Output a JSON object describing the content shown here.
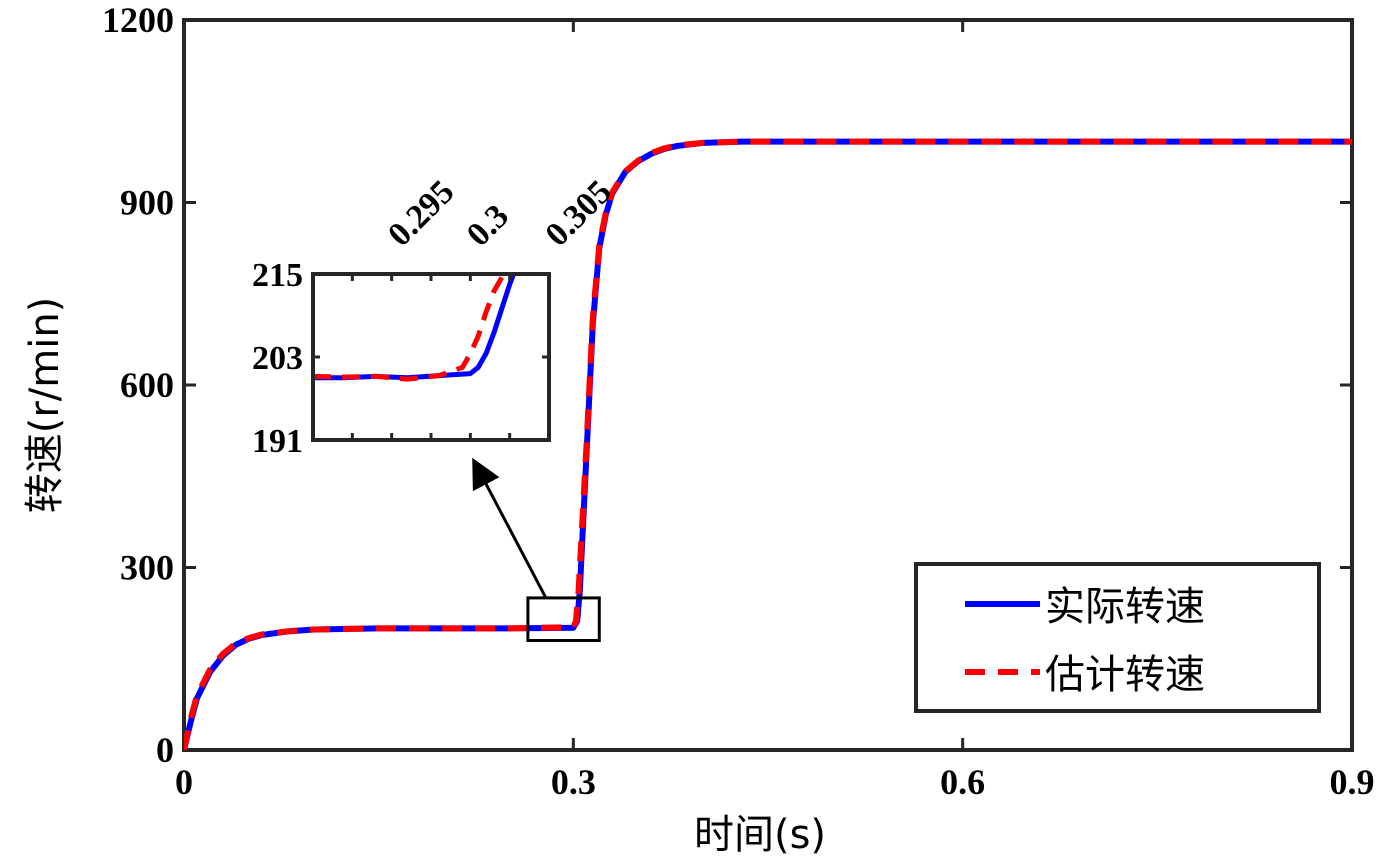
{
  "chart_data": {
    "type": "line",
    "xlabel": "时间(s)",
    "ylabel": "转速(r/min)",
    "xlim": [
      0,
      0.9
    ],
    "ylim": [
      0,
      1200
    ],
    "xticks": [
      0,
      0.3,
      0.6,
      0.9
    ],
    "xtick_labels": [
      "0",
      "0.3",
      "0.6",
      "0.9"
    ],
    "yticks": [
      0,
      300,
      600,
      900,
      1200
    ],
    "ytick_labels": [
      "0",
      "300",
      "600",
      "900",
      "1200"
    ],
    "grid": false,
    "legend_position": "bottom-right",
    "series": [
      {
        "name": "实际转速",
        "color": "#0000ff",
        "style": "solid",
        "x": [
          0,
          0.005,
          0.01,
          0.02,
          0.03,
          0.04,
          0.05,
          0.06,
          0.08,
          0.1,
          0.15,
          0.2,
          0.25,
          0.3,
          0.303,
          0.305,
          0.31,
          0.315,
          0.32,
          0.325,
          0.33,
          0.34,
          0.35,
          0.36,
          0.37,
          0.38,
          0.4,
          0.43,
          0.5,
          0.6,
          0.7,
          0.8,
          0.9
        ],
        "y": [
          0,
          45,
          85,
          128,
          155,
          173,
          183,
          189,
          195,
          198,
          200,
          200,
          200,
          201,
          212,
          262,
          480,
          700,
          825,
          880,
          915,
          950,
          968,
          980,
          988,
          993,
          998,
          1000,
          1000,
          1000,
          1000,
          1000,
          1000
        ]
      },
      {
        "name": "估计转速",
        "color": "#ff0000",
        "style": "dashed",
        "x": [
          0,
          0.005,
          0.01,
          0.02,
          0.03,
          0.04,
          0.05,
          0.06,
          0.08,
          0.1,
          0.15,
          0.2,
          0.25,
          0.3,
          0.302,
          0.304,
          0.31,
          0.315,
          0.32,
          0.325,
          0.33,
          0.34,
          0.35,
          0.36,
          0.37,
          0.38,
          0.4,
          0.43,
          0.5,
          0.6,
          0.7,
          0.8,
          0.9
        ],
        "y": [
          0,
          50,
          90,
          132,
          158,
          175,
          184,
          190,
          195,
          198,
          200,
          200,
          200,
          202,
          212,
          260,
          495,
          710,
          830,
          883,
          917,
          951,
          969,
          981,
          989,
          994,
          998,
          1000,
          1000,
          1000,
          1000,
          1000,
          1000
        ]
      }
    ],
    "inset": {
      "xlim": [
        0.29,
        0.305
      ],
      "ylim": [
        191,
        215
      ],
      "xticks": [
        0.295,
        0.3,
        0.305
      ],
      "xtick_labels": [
        "0.295",
        "0.3",
        "0.305"
      ],
      "yticks": [
        191,
        203,
        215
      ],
      "ytick_labels": [
        "191",
        "203",
        "215"
      ],
      "series": [
        {
          "name": "实际转速",
          "x": [
            0.29,
            0.292,
            0.294,
            0.296,
            0.298,
            0.3,
            0.3005,
            0.301,
            0.3015,
            0.302,
            0.3025,
            0.303
          ],
          "y": [
            200,
            200,
            200.2,
            200,
            200.3,
            200.6,
            201.5,
            203.5,
            206.5,
            210,
            213.5,
            216.5
          ]
        },
        {
          "name": "估计转速",
          "x": [
            0.29,
            0.292,
            0.294,
            0.296,
            0.298,
            0.2995,
            0.3,
            0.3005,
            0.301,
            0.3015,
            0.302
          ],
          "y": [
            200.2,
            200.1,
            200.2,
            199.8,
            200.3,
            201.5,
            203.5,
            206,
            209.5,
            212.5,
            214.5
          ]
        }
      ],
      "zoom_box": {
        "xlim": [
          0.265,
          0.32
        ],
        "ylim": [
          180,
          250
        ]
      }
    }
  }
}
